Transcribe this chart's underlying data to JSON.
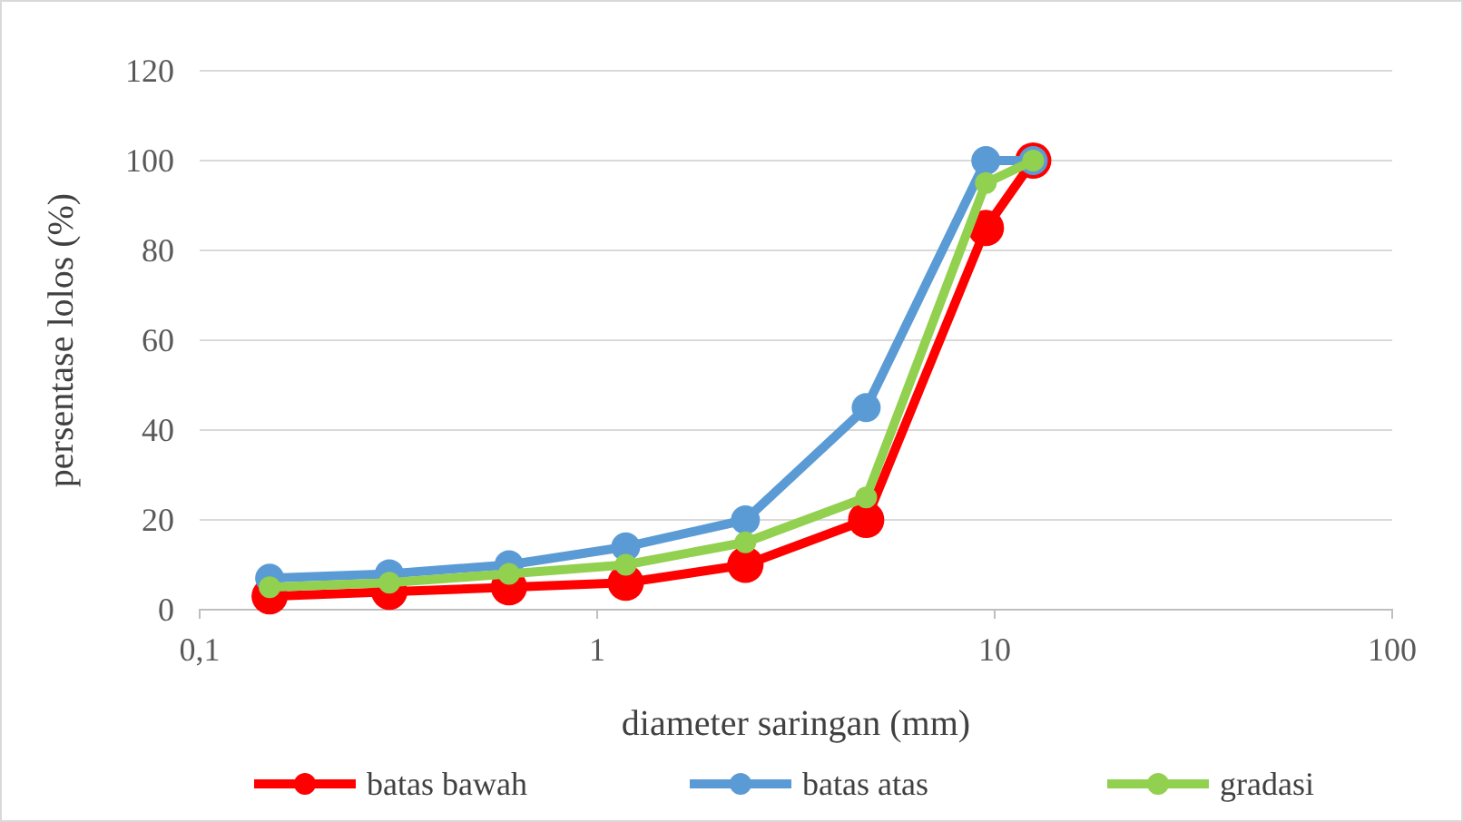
{
  "chart_data": {
    "type": "line",
    "xlabel": "diameter saringan (mm)",
    "ylabel": "persentase lolos (%)",
    "x": [
      0.15,
      0.3,
      0.6,
      1.18,
      2.36,
      4.75,
      9.5,
      12.5
    ],
    "series": [
      {
        "name": "batas bawah",
        "color": "#ff0000",
        "values": [
          3,
          4,
          5,
          6,
          10,
          20,
          85,
          100
        ]
      },
      {
        "name": "batas atas",
        "color": "#5b9bd5",
        "values": [
          7,
          8,
          10,
          14,
          20,
          45,
          100,
          100
        ]
      },
      {
        "name": "gradasi",
        "color": "#92d050",
        "values": [
          5,
          6,
          8,
          10,
          15,
          25,
          95,
          100
        ]
      }
    ],
    "log": "x",
    "xlim": [
      0.1,
      100
    ],
    "xticks": [
      {
        "value": 0.1,
        "label": "0,1"
      },
      1,
      10,
      100
    ],
    "ylim": [
      0,
      120
    ],
    "yticks": [
      0,
      20,
      40,
      60,
      80,
      100,
      120
    ],
    "grid": "y",
    "legend": "bottom",
    "marker": "circle",
    "line_style": "solid"
  }
}
